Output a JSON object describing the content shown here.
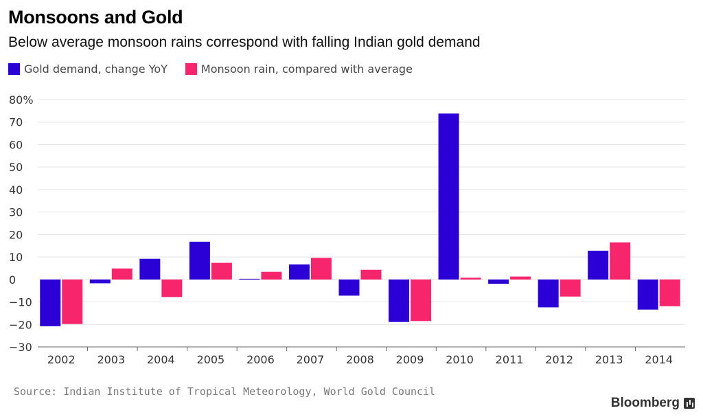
{
  "chart_data": {
    "type": "bar",
    "title": "Monsoons and Gold",
    "subtitle": "Below average monsoon rains correspond with falling Indian gold demand",
    "categories": [
      "2002",
      "2003",
      "2004",
      "2005",
      "2006",
      "2007",
      "2008",
      "2009",
      "2010",
      "2011",
      "2012",
      "2013",
      "2014"
    ],
    "series": [
      {
        "name": "Gold demand, change YoY",
        "color": "#2a00d6",
        "values": [
          -20.8,
          -1.7,
          9.2,
          16.8,
          0.3,
          6.7,
          -7.2,
          -18.9,
          73.8,
          -1.9,
          -12.4,
          12.8,
          -13.4
        ]
      },
      {
        "name": "Monsoon rain, compared with average",
        "color": "#f7256b",
        "values": [
          -19.8,
          4.9,
          -7.8,
          7.4,
          3.4,
          9.6,
          4.3,
          -18.5,
          0.8,
          1.3,
          -7.6,
          16.5,
          -11.9
        ]
      }
    ],
    "ylim": [
      -30,
      80
    ],
    "yticks": [
      -30,
      -20,
      -10,
      0,
      10,
      20,
      30,
      40,
      50,
      60,
      70,
      80
    ],
    "ytick_labels": [
      "−30",
      "−20",
      "−10",
      "0",
      "10",
      "20",
      "30",
      "40",
      "50",
      "60",
      "70",
      "80%"
    ],
    "grid": true,
    "legend": "top-left"
  },
  "source": "Source: Indian Institute of Tropical Meteorology, World Gold Council",
  "brand": "Bloomberg",
  "brand_icon": "bloomberg-chart-icon"
}
